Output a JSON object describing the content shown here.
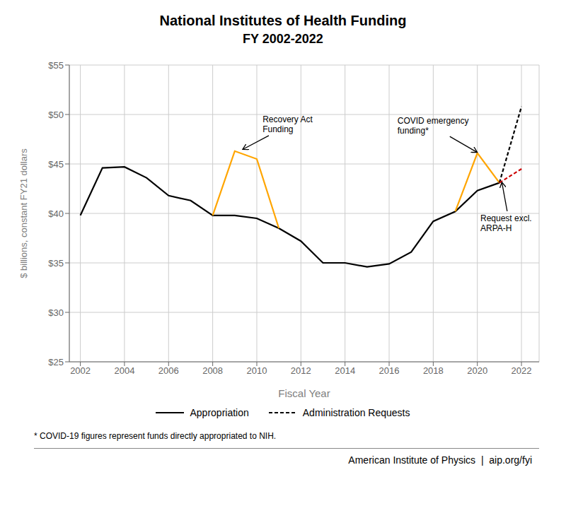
{
  "chart_data": {
    "type": "line",
    "title": "National Institutes of Health Funding",
    "subtitle": "FY 2002-2022",
    "x_label": "Fiscal Year",
    "y_label": "$ billions, constant FY21 dollars",
    "footnote": "* COVID-19 figures represent funds directly appropriated to NIH.",
    "watermark": "American Institute of Physics  |  aip.org/fyi",
    "xlim": [
      2001.5,
      2022.8
    ],
    "xticks": [
      2002,
      2004,
      2006,
      2008,
      2010,
      2012,
      2014,
      2016,
      2018,
      2020,
      2022
    ],
    "ylim": [
      25,
      55
    ],
    "yticks": [
      {
        "value": 25,
        "label": "$25"
      },
      {
        "value": 30,
        "label": "$30"
      },
      {
        "value": 35,
        "label": "$35"
      },
      {
        "value": 40,
        "label": "$40"
      },
      {
        "value": 45,
        "label": "$45"
      },
      {
        "value": 50,
        "label": "$50"
      },
      {
        "value": 55,
        "label": "$55"
      }
    ],
    "grid": true,
    "legend": "bottom",
    "series": [
      {
        "name": "Appropriation",
        "color": "#000000",
        "line_style": "solid",
        "x": [
          2002,
          2003,
          2004,
          2005,
          2006,
          2007,
          2008,
          2009,
          2010,
          2011,
          2012,
          2013,
          2014,
          2015,
          2016,
          2017,
          2018,
          2019,
          2020,
          2021
        ],
        "values": [
          39.8,
          44.6,
          44.7,
          43.6,
          41.8,
          41.3,
          39.8,
          39.8,
          39.5,
          38.5,
          37.2,
          35.0,
          35.0,
          34.6,
          34.9,
          36.1,
          39.2,
          40.2,
          42.3,
          43.1
        ]
      },
      {
        "color": "#FFA500",
        "line_style": "solid",
        "x": [
          2008,
          2009,
          2010,
          2011
        ],
        "values": [
          39.8,
          46.3,
          45.5,
          38.5
        ]
      },
      {
        "color": "#FFA500",
        "line_style": "solid",
        "x": [
          2019,
          2020,
          2021
        ],
        "values": [
          40.2,
          46.1,
          43.1
        ]
      },
      {
        "name": "Administration Requests",
        "color": "#000000",
        "line_style": "dashed",
        "x": [
          2021,
          2022
        ],
        "values": [
          43.1,
          50.8
        ]
      },
      {
        "color": "#CC0000",
        "line_style": "dashed",
        "x": [
          2021,
          2022
        ],
        "values": [
          43.1,
          44.5
        ]
      }
    ],
    "annotations": [
      {
        "text": "Recovery Act\nFunding",
        "x": 2009.3,
        "y": 46.4
      },
      {
        "text": "COVID emergency\nfunding*",
        "x": 2020.05,
        "y": 46.1
      },
      {
        "text": "Request excl.\nARPA-H",
        "x": 2021.1,
        "y": 43.3
      }
    ]
  }
}
